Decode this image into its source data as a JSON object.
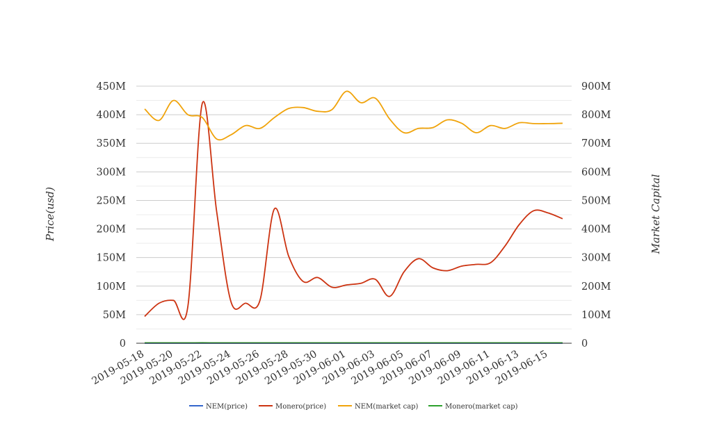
{
  "chart_data": {
    "type": "line",
    "title": "",
    "xlabel": "",
    "ylabel": "Price(usd)",
    "y2label": "Market Capital",
    "ylim": [
      0,
      450000000
    ],
    "y2lim": [
      0,
      900000000
    ],
    "y_ticks": [
      "0",
      "50M",
      "100M",
      "150M",
      "200M",
      "250M",
      "300M",
      "350M",
      "400M",
      "450M"
    ],
    "y2_ticks": [
      "0",
      "100M",
      "200M",
      "300M",
      "400M",
      "500M",
      "600M",
      "700M",
      "800M",
      "900M"
    ],
    "x_tick_labels": [
      "2019-05-18",
      "2019-05-20",
      "2019-05-22",
      "2019-05-24",
      "2019-05-26",
      "2019-05-28",
      "2019-05-30",
      "2019-06-01",
      "2019-06-03",
      "2019-06-05",
      "2019-06-07",
      "2019-06-09",
      "2019-06-11",
      "2019-06-13",
      "2019-06-15"
    ],
    "grid": true,
    "legend_position": "bottom",
    "x": [
      "2019-05-18",
      "2019-05-19",
      "2019-05-20",
      "2019-05-21",
      "2019-05-22",
      "2019-05-23",
      "2019-05-24",
      "2019-05-25",
      "2019-05-26",
      "2019-05-27",
      "2019-05-28",
      "2019-05-29",
      "2019-05-30",
      "2019-05-31",
      "2019-06-01",
      "2019-06-02",
      "2019-06-03",
      "2019-06-04",
      "2019-06-05",
      "2019-06-06",
      "2019-06-07",
      "2019-06-08",
      "2019-06-09",
      "2019-06-10",
      "2019-06-11",
      "2019-06-12",
      "2019-06-13",
      "2019-06-14",
      "2019-06-15",
      "2019-06-16"
    ],
    "series": [
      {
        "name": "NEM(price)",
        "axis": "left",
        "color": "#3366cc",
        "values": [
          0.09,
          0.09,
          0.09,
          0.09,
          0.1,
          0.09,
          0.09,
          0.09,
          0.09,
          0.09,
          0.09,
          0.09,
          0.09,
          0.09,
          0.09,
          0.09,
          0.09,
          0.09,
          0.09,
          0.09,
          0.09,
          0.09,
          0.09,
          0.09,
          0.09,
          0.09,
          0.09,
          0.09,
          0.09,
          0.09
        ]
      },
      {
        "name": "Monero(price)",
        "axis": "left",
        "color": "#cc3311",
        "values": [
          47000000,
          70000000,
          75000000,
          65000000,
          420000000,
          230000000,
          72000000,
          70000000,
          75000000,
          235000000,
          152000000,
          108000000,
          115000000,
          98000000,
          102000000,
          105000000,
          112000000,
          82000000,
          125000000,
          148000000,
          132000000,
          127000000,
          135000000,
          138000000,
          141000000,
          170000000,
          208000000,
          232000000,
          228000000,
          218000000
        ]
      },
      {
        "name": "NEM(market cap)",
        "axis": "right",
        "color": "#f0a30a",
        "values": [
          820000000,
          780000000,
          850000000,
          800000000,
          790000000,
          715000000,
          730000000,
          762000000,
          752000000,
          790000000,
          822000000,
          825000000,
          812000000,
          818000000,
          882000000,
          842000000,
          858000000,
          785000000,
          737000000,
          752000000,
          755000000,
          782000000,
          770000000,
          737000000,
          762000000,
          752000000,
          772000000,
          769000000,
          769000000,
          770000000
        ]
      },
      {
        "name": "Monero(market cap)",
        "axis": "right",
        "color": "#2ca02c",
        "values": [
          1500000,
          1500000,
          1500000,
          1500000,
          1600000,
          1500000,
          1500000,
          1500000,
          1500000,
          1500000,
          1500000,
          1500000,
          1500000,
          1500000,
          1500000,
          1500000,
          1500000,
          1500000,
          1500000,
          1500000,
          1500000,
          1500000,
          1500000,
          1500000,
          1500000,
          1500000,
          1500000,
          1500000,
          1500000,
          1500000
        ]
      }
    ]
  }
}
